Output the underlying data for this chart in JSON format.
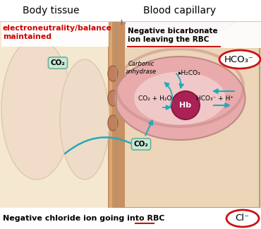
{
  "fig_width": 3.7,
  "fig_height": 3.24,
  "dpi": 100,
  "bg_color": "#f0d8b8",
  "body_tissue_label": "Body tissue",
  "blood_capillary_label": "Blood capillary",
  "electroneutrality_label": "electroneutrality/balance\nmaintained",
  "electroneutrality_color": "#cc0000",
  "neg_bicarb_label": "Negative bicarbonate\nion leaving the RBC",
  "neg_chloride_label": "Negative chloride ion going into RBC",
  "hco3_label": "HCO₃⁻",
  "cl_label": "Cl⁻",
  "co2_label1": "CO₂",
  "co2_label2": "CO₂",
  "hb_label": "Hb",
  "carbonic_label": "Carbonic\nanhydrase",
  "reaction1": "CO₂ + H₂O",
  "reaction2": "HCO₃⁻ + H⁺",
  "reaction3": "▸H₂CO₃",
  "body_tissue_color": "#f5e8d0",
  "blood_cap_color_light": "#ecd5b8",
  "rbc_outer_color": "#e8aaaa",
  "rbc_inner_color": "#d89090",
  "hb_color": "#aa2255",
  "arrow_color": "#22aabb",
  "circle_color": "#cc1111",
  "cell_color": "#c08060",
  "cell_edge": "#a06040",
  "wall_color": "#c89060",
  "co2_bg": "#c8e8d8",
  "co2_edge": "#70b090"
}
